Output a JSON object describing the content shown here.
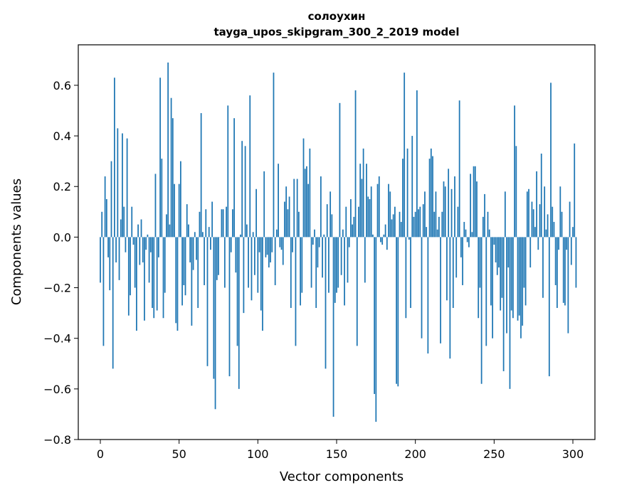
{
  "chart_data": {
    "type": "bar",
    "title": "солоухин",
    "subtitle": "tayga_upos_skipgram_300_2_2019 model",
    "xlabel": "Vector components",
    "ylabel": "Components values",
    "xlim": [
      -14,
      314
    ],
    "ylim": [
      -0.8,
      0.76
    ],
    "xticks": [
      0,
      50,
      100,
      150,
      200,
      250,
      300
    ],
    "yticks": [
      -0.8,
      -0.6,
      -0.4,
      -0.2,
      0.0,
      0.2,
      0.4,
      0.6
    ],
    "ytick_labels": [
      "−0.8",
      "−0.6",
      "−0.4",
      "−0.2",
      "0.0",
      "0.2",
      "0.4",
      "0.6"
    ],
    "bar_color": "#1f77b4",
    "grid": false,
    "x_start": 0,
    "values": [
      -0.18,
      0.1,
      -0.43,
      0.24,
      0.15,
      -0.08,
      -0.21,
      0.3,
      -0.52,
      0.63,
      -0.1,
      0.43,
      -0.17,
      0.07,
      0.41,
      0.12,
      -0.06,
      0.39,
      -0.31,
      -0.23,
      0.12,
      -0.03,
      -0.2,
      -0.37,
      0.05,
      -0.11,
      0.07,
      -0.1,
      -0.33,
      -0.05,
      0.01,
      -0.18,
      -0.06,
      -0.28,
      -0.32,
      0.25,
      -0.29,
      -0.08,
      0.63,
      0.31,
      -0.32,
      -0.22,
      0.09,
      0.69,
      0.05,
      0.55,
      0.47,
      0.21,
      -0.34,
      -0.37,
      0.21,
      0.3,
      -0.27,
      -0.19,
      -0.23,
      0.13,
      0.05,
      -0.1,
      -0.35,
      -0.13,
      0.02,
      -0.09,
      -0.28,
      0.1,
      0.49,
      0.02,
      -0.19,
      0.11,
      -0.51,
      0.04,
      -0.05,
      0.14,
      -0.56,
      -0.68,
      -0.17,
      -0.15,
      0.0,
      0.11,
      0.11,
      -0.2,
      0.12,
      0.52,
      -0.55,
      -0.06,
      0.11,
      0.47,
      -0.14,
      -0.43,
      -0.6,
      0.01,
      0.38,
      -0.3,
      0.36,
      0.05,
      -0.2,
      0.56,
      -0.25,
      0.02,
      -0.15,
      0.19,
      -0.22,
      -0.06,
      -0.29,
      -0.37,
      0.26,
      -0.08,
      -0.07,
      -0.12,
      -0.1,
      -0.06,
      0.65,
      -0.19,
      0.03,
      0.29,
      -0.04,
      -0.05,
      -0.11,
      0.14,
      0.2,
      0.11,
      0.16,
      -0.28,
      -0.06,
      0.23,
      -0.43,
      0.23,
      0.1,
      -0.27,
      -0.22,
      0.39,
      0.27,
      0.28,
      0.21,
      0.35,
      -0.2,
      -0.03,
      0.03,
      -0.28,
      -0.12,
      -0.04,
      0.24,
      -0.16,
      0.01,
      -0.52,
      0.13,
      -0.22,
      0.18,
      0.09,
      -0.71,
      -0.26,
      -0.22,
      -0.2,
      0.53,
      -0.15,
      0.03,
      -0.27,
      0.12,
      -0.18,
      -0.04,
      0.15,
      0.05,
      0.08,
      0.58,
      -0.43,
      0.12,
      0.29,
      0.23,
      0.35,
      -0.18,
      0.29,
      0.16,
      0.15,
      0.2,
      0.01,
      -0.62,
      -0.73,
      0.21,
      0.24,
      -0.02,
      -0.03,
      0.01,
      0.05,
      -0.05,
      0.21,
      0.18,
      0.07,
      0.09,
      0.12,
      -0.58,
      -0.59,
      0.1,
      0.06,
      0.31,
      0.65,
      -0.32,
      0.35,
      -0.01,
      -0.28,
      0.4,
      0.08,
      0.1,
      0.58,
      0.11,
      0.12,
      -0.4,
      0.13,
      0.18,
      0.04,
      -0.46,
      0.31,
      0.35,
      0.32,
      0.1,
      0.18,
      0.03,
      0.08,
      -0.42,
      0.1,
      0.22,
      0.2,
      -0.25,
      0.27,
      -0.48,
      0.19,
      -0.28,
      0.24,
      -0.16,
      0.12,
      0.54,
      -0.08,
      -0.19,
      0.06,
      0.03,
      -0.02,
      -0.04,
      0.25,
      0.02,
      0.28,
      0.28,
      0.22,
      -0.32,
      -0.2,
      -0.58,
      0.08,
      0.17,
      -0.43,
      0.1,
      0.03,
      -0.27,
      -0.4,
      -0.03,
      -0.1,
      -0.15,
      -0.12,
      -0.29,
      -0.24,
      -0.53,
      0.18,
      -0.38,
      -0.12,
      -0.6,
      -0.29,
      -0.32,
      0.52,
      0.36,
      -0.33,
      -0.31,
      -0.4,
      -0.35,
      -0.2,
      -0.27,
      0.18,
      0.19,
      -0.12,
      0.14,
      0.11,
      0.04,
      0.26,
      -0.05,
      0.13,
      0.33,
      -0.24,
      0.2,
      0.03,
      0.09,
      -0.55,
      0.61,
      0.12,
      0.06,
      -0.19,
      -0.28,
      -0.05,
      0.2,
      0.1,
      -0.26,
      -0.27,
      -0.05,
      -0.38,
      0.14,
      -0.11,
      0.04,
      0.37,
      -0.2
    ]
  }
}
